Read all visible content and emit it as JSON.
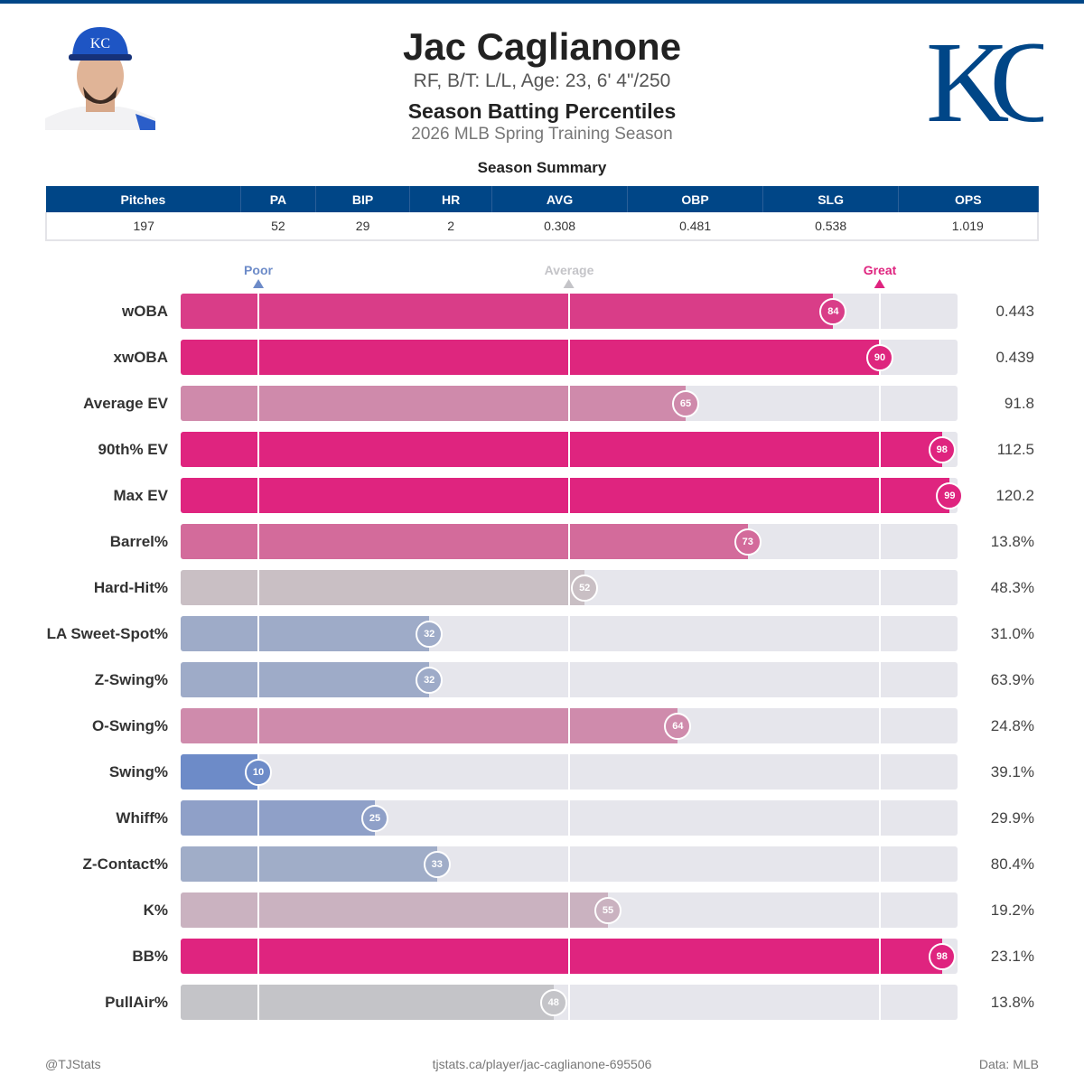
{
  "header": {
    "name": "Jac Caglianone",
    "bio": "RF, B/T: L/L, Age: 23, 6' 4\"/250",
    "title": "Season Batting Percentiles",
    "season": "2026 MLB Spring Training Season",
    "logo_text": "KC"
  },
  "summary": {
    "title": "Season Summary",
    "columns": [
      "Pitches",
      "PA",
      "BIP",
      "HR",
      "AVG",
      "OBP",
      "SLG",
      "OPS"
    ],
    "values": [
      "197",
      "52",
      "29",
      "2",
      "0.308",
      "0.481",
      "0.538",
      "1.019"
    ]
  },
  "scale": {
    "poor": "Poor",
    "average": "Average",
    "great": "Great"
  },
  "metrics": [
    {
      "label": "wOBA",
      "percentile": 84,
      "value": "0.443",
      "color": "#d93d88"
    },
    {
      "label": "xwOBA",
      "percentile": 90,
      "value": "0.439",
      "color": "#de267e"
    },
    {
      "label": "Average EV",
      "percentile": 65,
      "value": "91.8",
      "color": "#cf8aab"
    },
    {
      "label": "90th% EV",
      "percentile": 98,
      "value": "112.5",
      "color": "#df247f"
    },
    {
      "label": "Max EV",
      "percentile": 99,
      "value": "120.2",
      "color": "#df247f"
    },
    {
      "label": "Barrel%",
      "percentile": 73,
      "value": "13.8%",
      "color": "#d36b9b"
    },
    {
      "label": "Hard-Hit%",
      "percentile": 52,
      "value": "48.3%",
      "color": "#c9bfc4"
    },
    {
      "label": "LA Sweet-Spot%",
      "percentile": 32,
      "value": "31.0%",
      "color": "#9eabc8"
    },
    {
      "label": "Z-Swing%",
      "percentile": 32,
      "value": "63.9%",
      "color": "#9eabc8"
    },
    {
      "label": "O-Swing%",
      "percentile": 64,
      "value": "24.8%",
      "color": "#cf8bac"
    },
    {
      "label": "Swing%",
      "percentile": 10,
      "value": "39.1%",
      "color": "#6d8bc8"
    },
    {
      "label": "Whiff%",
      "percentile": 25,
      "value": "29.9%",
      "color": "#8fa0c8"
    },
    {
      "label": "Z-Contact%",
      "percentile": 33,
      "value": "80.4%",
      "color": "#a0adc8"
    },
    {
      "label": "K%",
      "percentile": 55,
      "value": "19.2%",
      "color": "#cab2c0"
    },
    {
      "label": "BB%",
      "percentile": 98,
      "value": "23.1%",
      "color": "#df247f"
    },
    {
      "label": "PullAir%",
      "percentile": 48,
      "value": "13.8%",
      "color": "#c4c4c8"
    }
  ],
  "footer": {
    "left": "@TJStats",
    "center": "tjstats.ca/player/jac-caglianone-695506",
    "right": "Data: MLB"
  }
}
